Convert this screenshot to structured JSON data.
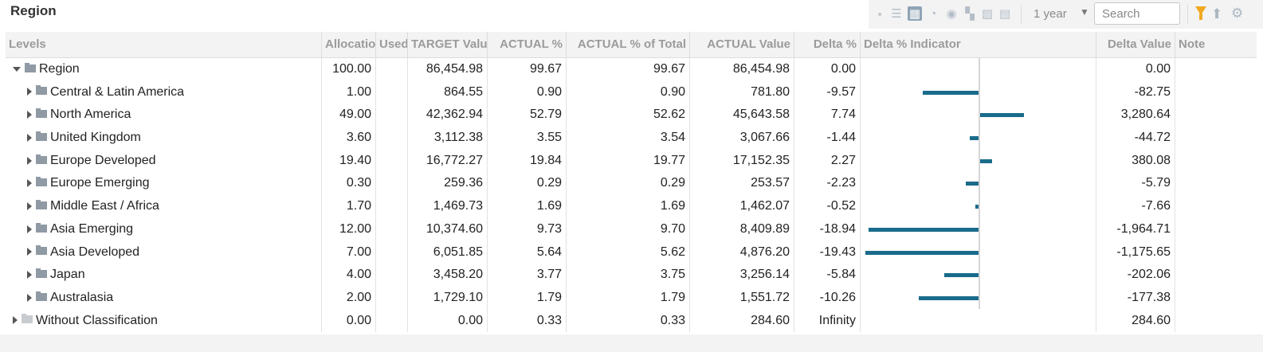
{
  "title": "Region",
  "toolbar": {
    "icons": [
      "collapse-icon",
      "list-icon",
      "tree-view-icon",
      "pie-chart-icon",
      "sunburst-icon",
      "grid-icon",
      "area-chart-icon",
      "stacked-chart-icon"
    ],
    "active_icon": "tree-view-icon",
    "period": "1 year",
    "search_placeholder": "Search"
  },
  "columns": {
    "levels": "Levels",
    "allocation": "Allocatio",
    "used": "Used",
    "target_value": "TARGET Valu",
    "actual_pct": "ACTUAL %",
    "actual_pct_total": "ACTUAL % of Total",
    "actual_value": "ACTUAL Value",
    "delta_pct": "Delta %",
    "delta_indicator": "Delta % Indicator",
    "delta_value": "Delta Value",
    "note": "Note"
  },
  "rows": [
    {
      "name": "Region",
      "allocation": "100.00",
      "target": "86,454.98",
      "actual_pct": "99.67",
      "actual_pct_total": "99.67",
      "actual_value": "86,454.98",
      "delta_pct": "0.00",
      "delta_value": "0.00",
      "delta_num": 0
    },
    {
      "name": "Central & Latin America",
      "allocation": "1.00",
      "target": "864.55",
      "actual_pct": "0.90",
      "actual_pct_total": "0.90",
      "actual_value": "781.80",
      "delta_pct": "-9.57",
      "delta_value": "-82.75",
      "delta_num": -9.57
    },
    {
      "name": "North America",
      "allocation": "49.00",
      "target": "42,362.94",
      "actual_pct": "52.79",
      "actual_pct_total": "52.62",
      "actual_value": "45,643.58",
      "delta_pct": "7.74",
      "delta_value": "3,280.64",
      "delta_num": 7.74
    },
    {
      "name": "United Kingdom",
      "allocation": "3.60",
      "target": "3,112.38",
      "actual_pct": "3.55",
      "actual_pct_total": "3.54",
      "actual_value": "3,067.66",
      "delta_pct": "-1.44",
      "delta_value": "-44.72",
      "delta_num": -1.44
    },
    {
      "name": "Europe Developed",
      "allocation": "19.40",
      "target": "16,772.27",
      "actual_pct": "19.84",
      "actual_pct_total": "19.77",
      "actual_value": "17,152.35",
      "delta_pct": "2.27",
      "delta_value": "380.08",
      "delta_num": 2.27
    },
    {
      "name": "Europe Emerging",
      "allocation": "0.30",
      "target": "259.36",
      "actual_pct": "0.29",
      "actual_pct_total": "0.29",
      "actual_value": "253.57",
      "delta_pct": "-2.23",
      "delta_value": "-5.79",
      "delta_num": -2.23
    },
    {
      "name": "Middle East / Africa",
      "allocation": "1.70",
      "target": "1,469.73",
      "actual_pct": "1.69",
      "actual_pct_total": "1.69",
      "actual_value": "1,462.07",
      "delta_pct": "-0.52",
      "delta_value": "-7.66",
      "delta_num": -0.52
    },
    {
      "name": "Asia Emerging",
      "allocation": "12.00",
      "target": "10,374.60",
      "actual_pct": "9.73",
      "actual_pct_total": "9.70",
      "actual_value": "8,409.89",
      "delta_pct": "-18.94",
      "delta_value": "-1,964.71",
      "delta_num": -18.94
    },
    {
      "name": "Asia Developed",
      "allocation": "7.00",
      "target": "6,051.85",
      "actual_pct": "5.64",
      "actual_pct_total": "5.62",
      "actual_value": "4,876.20",
      "delta_pct": "-19.43",
      "delta_value": "-1,175.65",
      "delta_num": -19.43
    },
    {
      "name": "Japan",
      "allocation": "4.00",
      "target": "3,458.20",
      "actual_pct": "3.77",
      "actual_pct_total": "3.75",
      "actual_value": "3,256.14",
      "delta_pct": "-5.84",
      "delta_value": "-202.06",
      "delta_num": -5.84
    },
    {
      "name": "Australasia",
      "allocation": "2.00",
      "target": "1,729.10",
      "actual_pct": "1.79",
      "actual_pct_total": "1.79",
      "actual_value": "1,551.72",
      "delta_pct": "-10.26",
      "delta_value": "-177.38",
      "delta_num": -10.26
    },
    {
      "name": "Without Classification",
      "allocation": "0.00",
      "target": "0.00",
      "actual_pct": "0.33",
      "actual_pct_total": "0.33",
      "actual_value": "284.60",
      "delta_pct": "Infinity",
      "delta_value": "284.60",
      "delta_num": null
    }
  ],
  "colors": {
    "bar": "#1a6b8a",
    "filter": "#f0a81e"
  }
}
